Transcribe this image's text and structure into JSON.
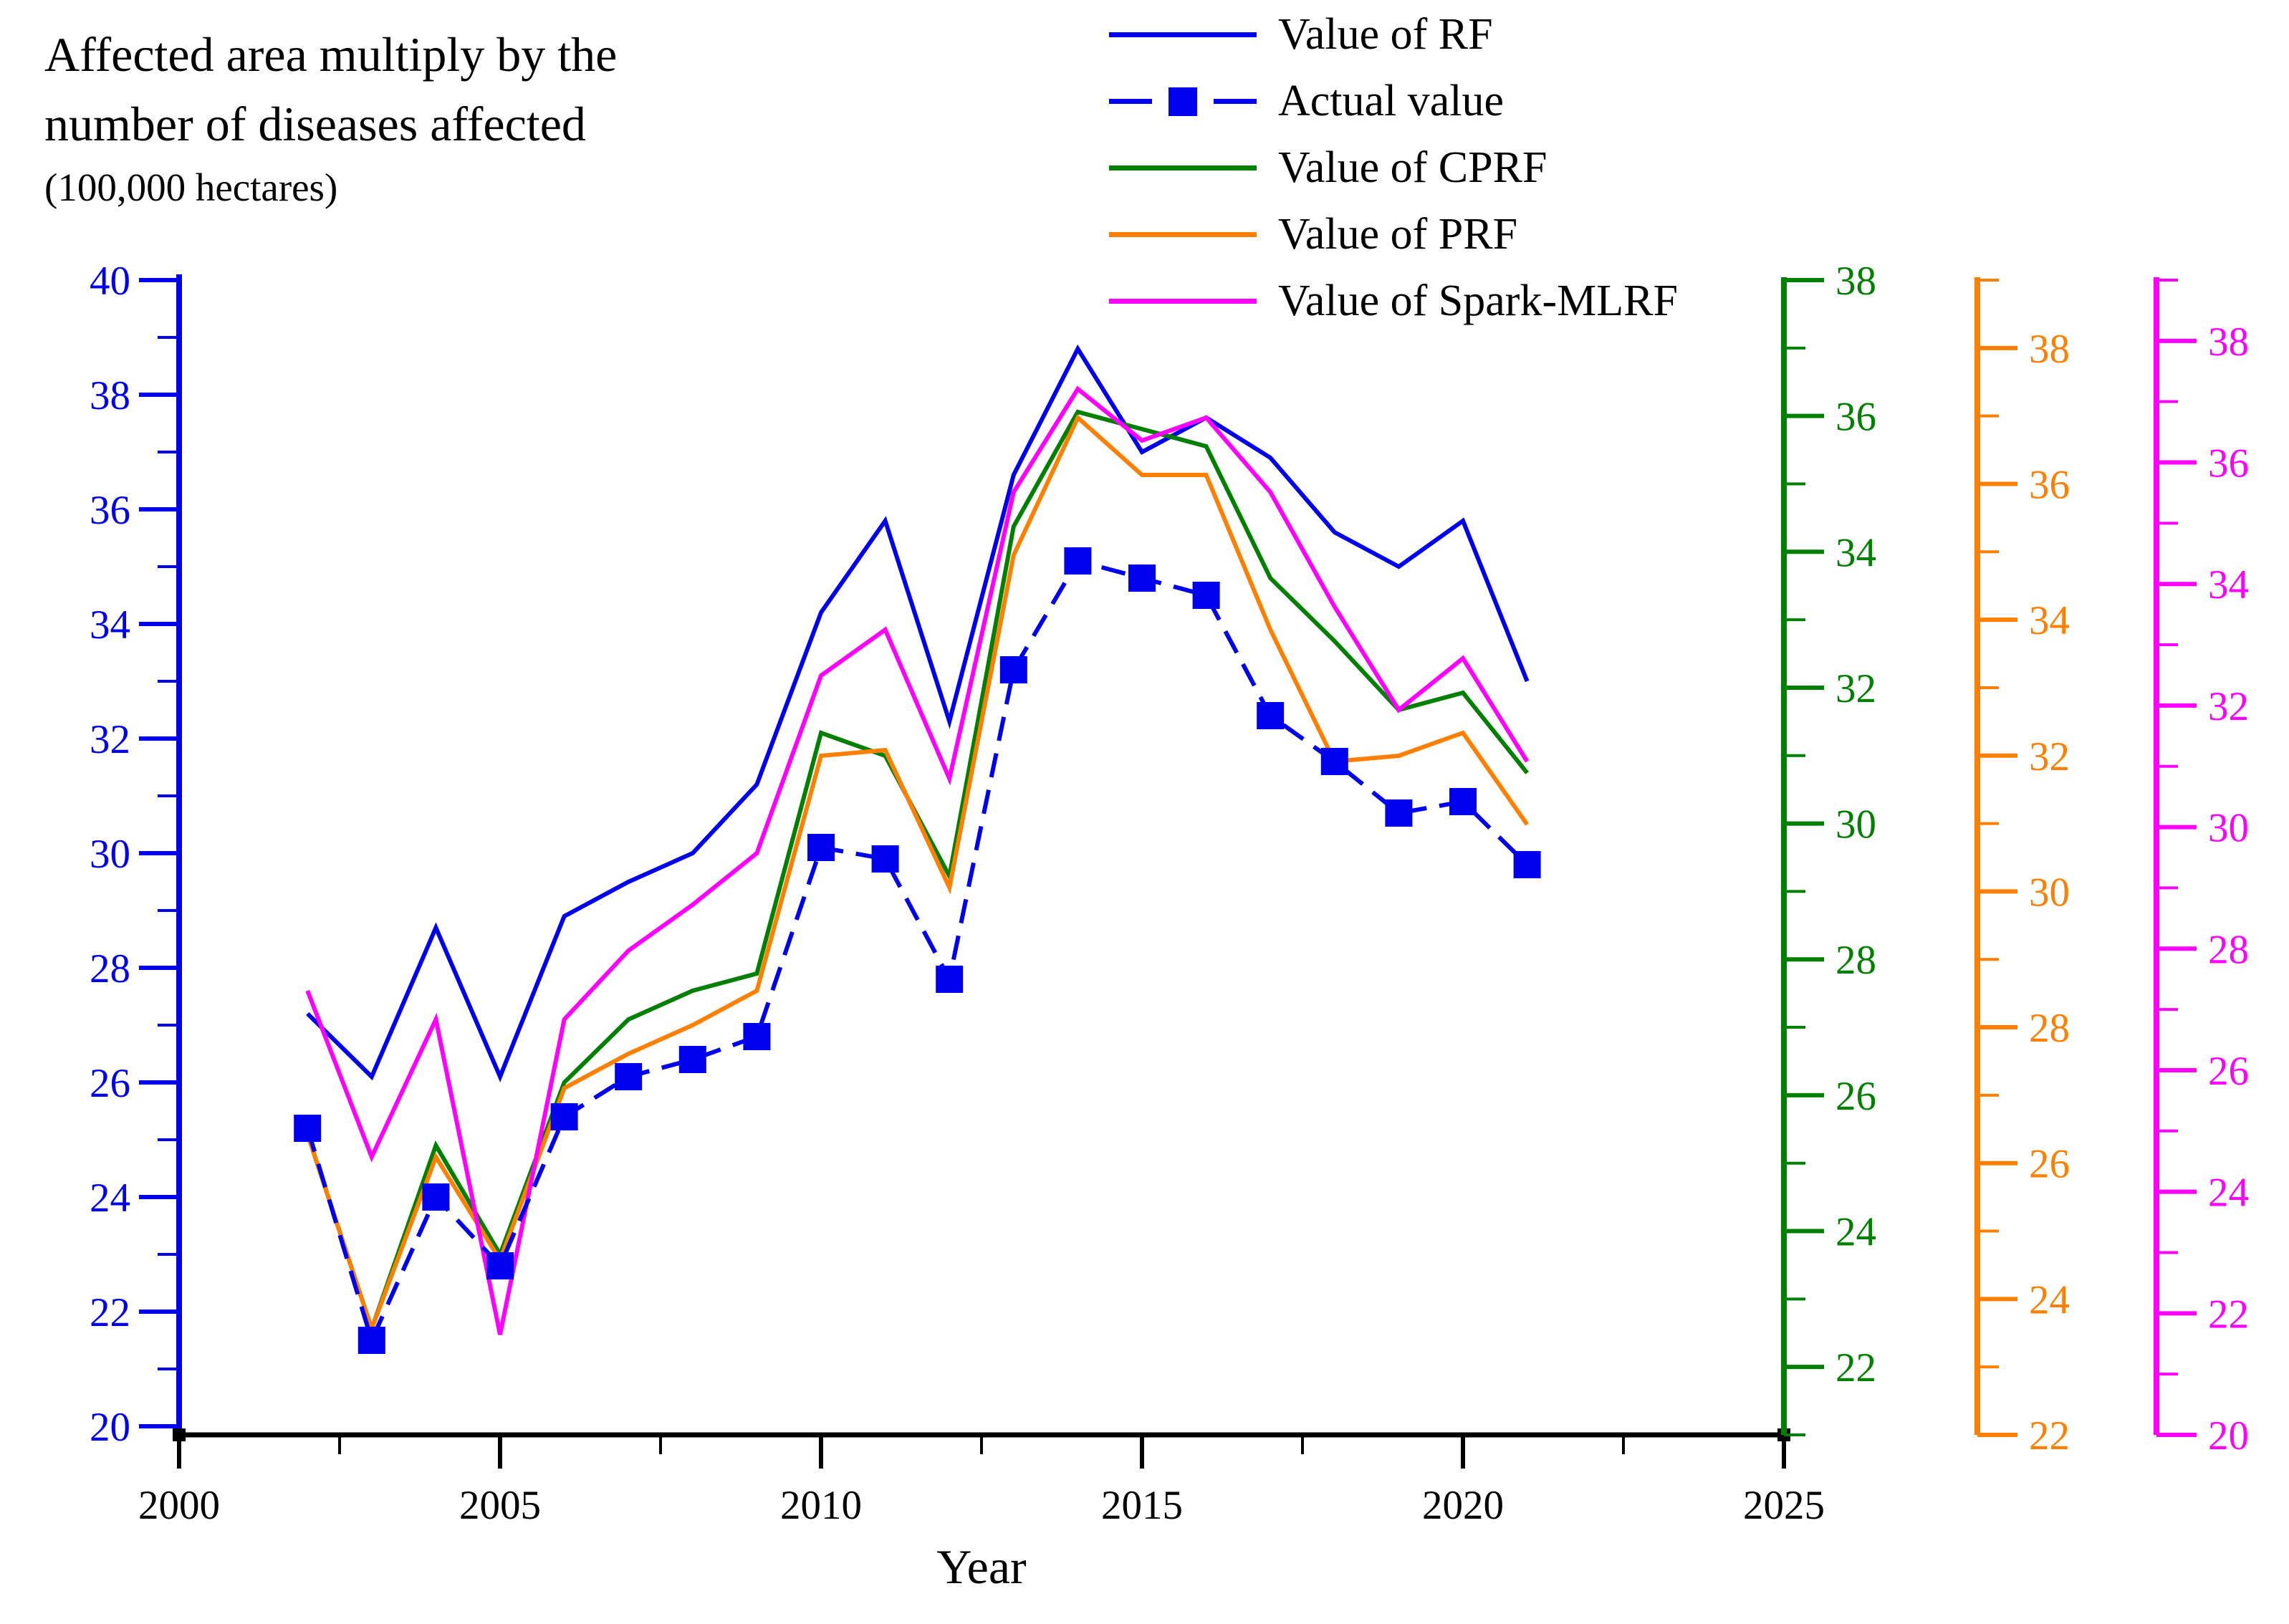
{
  "chart_data": {
    "type": "line",
    "title_lines": [
      "Affected area multiply by the",
      "number of diseases affected",
      "(100,000 hectares)"
    ],
    "xlabel": "Year",
    "x_axis": {
      "range": [
        2000,
        2025
      ],
      "major_tick_labels": [
        "2000",
        "2005",
        "2010",
        "2015",
        "2020",
        "2025"
      ],
      "major_tick_values": [
        2000,
        2005,
        2010,
        2015,
        2020,
        2025
      ],
      "minor_tick_values": [
        2002.5,
        2007.5,
        2012.5,
        2017.5,
        2022.5
      ]
    },
    "axes": {
      "left": {
        "color": "#0000ee",
        "top_value": 40,
        "bottom_value": 20,
        "major_tick_values": [
          20,
          22,
          24,
          26,
          28,
          30,
          32,
          34,
          36,
          38,
          40
        ],
        "minor_tick_values": [
          21,
          23,
          25,
          27,
          29,
          31,
          33,
          35,
          37,
          39
        ]
      },
      "right": [
        {
          "name": "green-axis",
          "color": "#008000",
          "top_value": 38,
          "bottom_value": 21,
          "major_tick_values": [
            22,
            24,
            26,
            28,
            30,
            32,
            34,
            36,
            38
          ],
          "minor_tick_values": [
            21,
            23,
            25,
            27,
            29,
            31,
            33,
            35,
            37
          ]
        },
        {
          "name": "orange-axis",
          "color": "#ff8000",
          "top_value": 39,
          "bottom_value": 22,
          "major_tick_values": [
            22,
            24,
            26,
            28,
            30,
            32,
            34,
            36,
            38
          ],
          "minor_tick_values": [
            23,
            25,
            27,
            29,
            31,
            33,
            35,
            37,
            39
          ]
        },
        {
          "name": "magenta-axis",
          "color": "#ff00ff",
          "top_value": 39,
          "bottom_value": 20,
          "major_tick_values": [
            20,
            22,
            24,
            26,
            28,
            30,
            32,
            34,
            36,
            38
          ],
          "minor_tick_values": [
            21,
            23,
            25,
            27,
            29,
            31,
            33,
            35,
            37,
            39
          ]
        }
      ]
    },
    "years": [
      2002,
      2003,
      2004,
      2005,
      2006,
      2007,
      2008,
      2009,
      2010,
      2011,
      2012,
      2013,
      2014,
      2015,
      2016,
      2017,
      2018,
      2019,
      2020,
      2021
    ],
    "series": [
      {
        "name": "Value of RF",
        "color": "#0000ee",
        "style": "solid",
        "marker": "none",
        "values": [
          27.2,
          26.1,
          28.7,
          26.1,
          28.9,
          29.5,
          30.0,
          31.2,
          34.2,
          35.8,
          32.3,
          36.6,
          38.8,
          37.0,
          37.6,
          36.9,
          35.6,
          35.0,
          35.8,
          33.0
        ]
      },
      {
        "name": "Actual value",
        "color": "#0000ee",
        "style": "dashed",
        "marker": "square",
        "values": [
          25.2,
          21.5,
          24.0,
          22.8,
          25.4,
          26.1,
          26.4,
          26.8,
          30.1,
          29.9,
          27.8,
          33.2,
          35.1,
          34.8,
          34.5,
          32.4,
          31.6,
          30.7,
          30.9,
          29.8
        ]
      },
      {
        "name": "Value of CPRF",
        "color": "#008000",
        "style": "solid",
        "marker": "none",
        "values": [
          25.1,
          21.7,
          24.9,
          23.0,
          26.0,
          27.1,
          27.6,
          27.9,
          32.1,
          31.7,
          29.6,
          35.7,
          37.7,
          37.4,
          37.1,
          34.8,
          33.7,
          32.5,
          32.8,
          31.4
        ]
      },
      {
        "name": "Value of PRF",
        "color": "#ff8000",
        "style": "solid",
        "marker": "none",
        "values": [
          25.1,
          21.7,
          24.7,
          22.9,
          25.9,
          26.5,
          27.0,
          27.6,
          31.7,
          31.8,
          29.4,
          35.2,
          37.6,
          36.6,
          36.6,
          33.9,
          31.6,
          31.7,
          32.1,
          30.5
        ]
      },
      {
        "name": "Value of Spark-MLRF",
        "color": "#ff00ff",
        "style": "solid",
        "marker": "none",
        "values": [
          27.6,
          24.7,
          27.1,
          21.6,
          27.1,
          28.3,
          29.1,
          30.0,
          33.1,
          33.9,
          31.3,
          36.3,
          38.1,
          37.2,
          37.6,
          36.3,
          34.3,
          32.5,
          33.4,
          31.6
        ]
      }
    ]
  },
  "legend": {
    "entries": [
      "Value of RF",
      "Actual value",
      "Value of CPRF",
      "Value of PRF",
      "Value of Spark-MLRF"
    ]
  }
}
